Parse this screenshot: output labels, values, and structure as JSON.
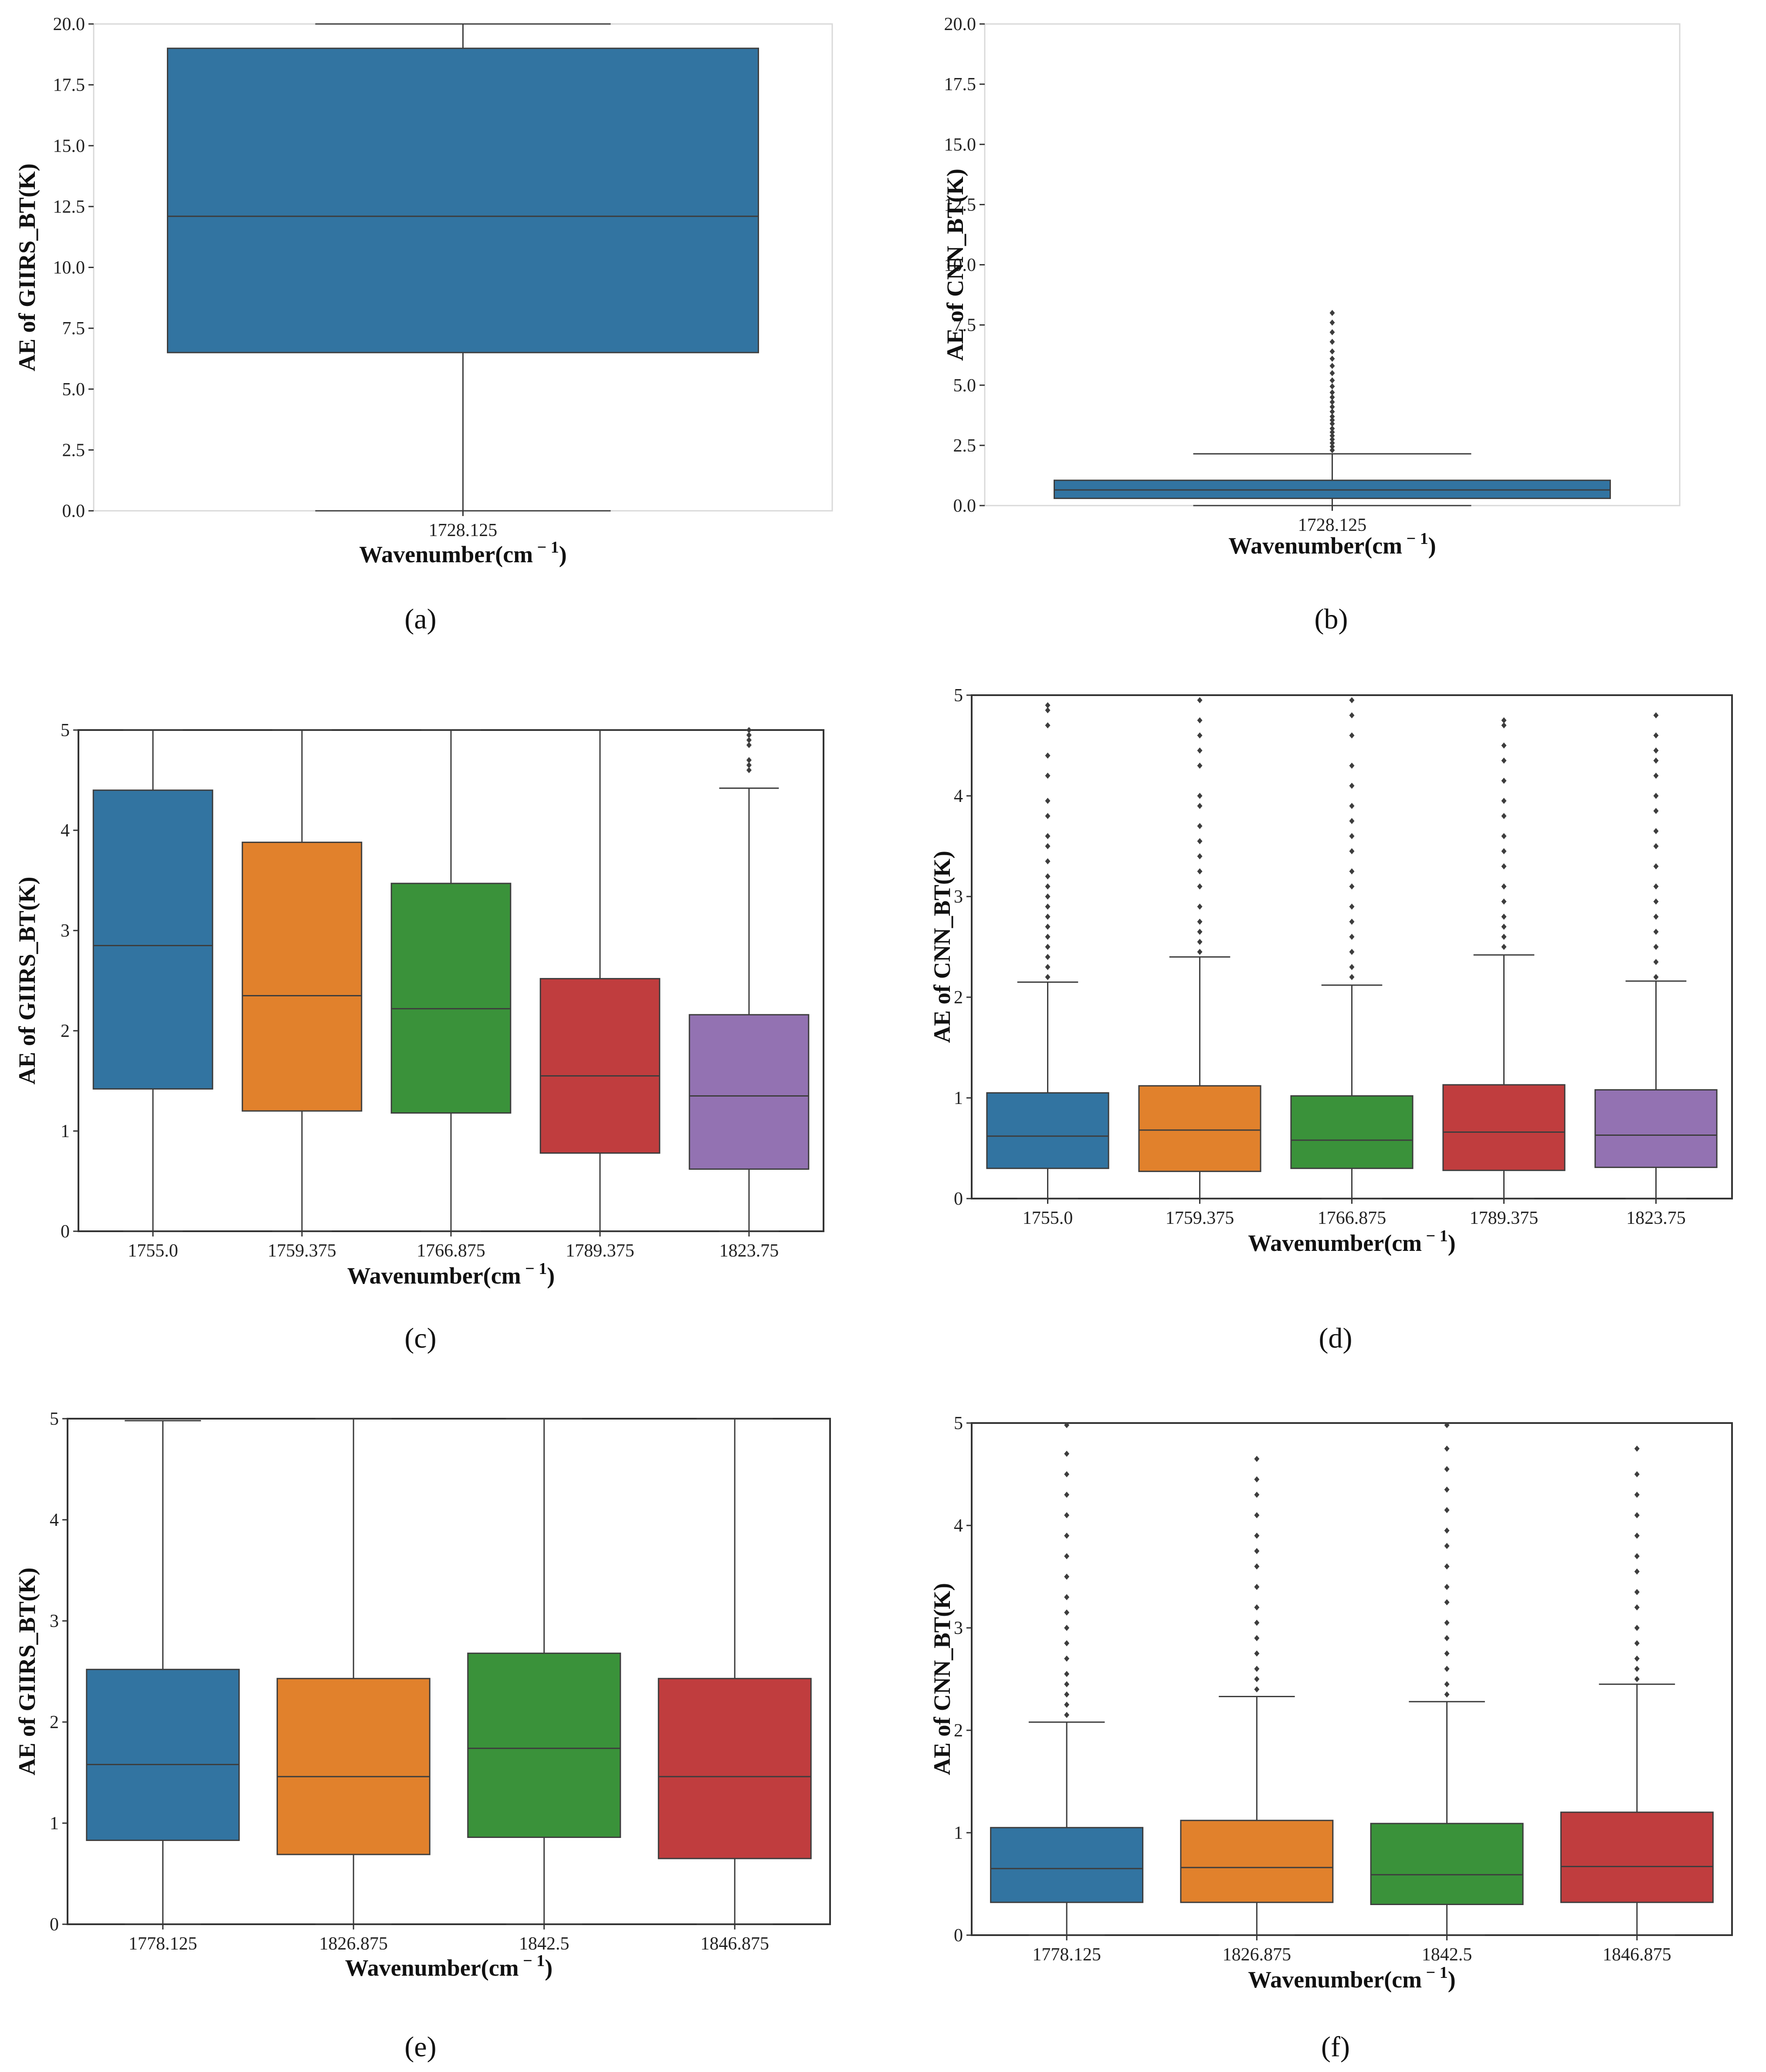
{
  "chart_data": [
    {
      "panel": "a",
      "type": "box",
      "categories": [
        "1728.125"
      ],
      "ylabel": "AE of GIIRS_BT(K)",
      "xlabel": "Wavenumber(cm",
      "xlabel_unit_sup": "− 1",
      "xlabel_close": ")",
      "ylim": [
        0,
        20
      ],
      "yticks": [
        "0.0",
        "2.5",
        "5.0",
        "7.5",
        "10.0",
        "12.5",
        "15.0",
        "17.5",
        "20.0"
      ],
      "boxes": [
        {
          "category": "1728.125",
          "whisker_low": 0.0,
          "q1": 6.5,
          "median": 12.1,
          "q3": 19.0,
          "whisker_high": 20.0,
          "color": "#3274A1",
          "outliers": []
        }
      ],
      "label": "(a)",
      "frame": "light"
    },
    {
      "panel": "b",
      "type": "box",
      "categories": [
        "1728.125"
      ],
      "ylabel": "AE of CNN_BT(K)",
      "xlabel": "Wavenumber(cm",
      "xlabel_unit_sup": "− 1",
      "xlabel_close": ")",
      "ylim": [
        0,
        20
      ],
      "yticks": [
        "0.0",
        "2.5",
        "5.0",
        "7.5",
        "10.0",
        "12.5",
        "15.0",
        "17.5",
        "20.0"
      ],
      "boxes": [
        {
          "category": "1728.125",
          "whisker_low": 0.0,
          "q1": 0.3,
          "median": 0.65,
          "q3": 1.05,
          "whisker_high": 2.15,
          "color": "#3274A1",
          "outliers": [
            2.3,
            2.45,
            2.6,
            2.75,
            2.9,
            3.05,
            3.2,
            3.4,
            3.55,
            3.7,
            3.9,
            4.1,
            4.3,
            4.5,
            4.7,
            4.95,
            5.2,
            5.5,
            5.8,
            6.1,
            6.4,
            6.8,
            7.2,
            7.6,
            8.0
          ]
        }
      ],
      "label": "(b)",
      "frame": "light"
    },
    {
      "panel": "c",
      "type": "box",
      "categories": [
        "1755.0",
        "1759.375",
        "1766.875",
        "1789.375",
        "1823.75"
      ],
      "ylabel": "AE of GIIRS_BT(K)",
      "xlabel": "Wavenumber(cm",
      "xlabel_unit_sup": "− 1",
      "xlabel_close": ")",
      "ylim": [
        0,
        5
      ],
      "yticks": [
        "0",
        "1",
        "2",
        "3",
        "4",
        "5"
      ],
      "boxes": [
        {
          "category": "1755.0",
          "whisker_low": 0,
          "q1": 1.42,
          "median": 2.85,
          "q3": 4.4,
          "whisker_high": 5.0,
          "color": "#3274A1",
          "outliers": []
        },
        {
          "category": "1759.375",
          "whisker_low": 0,
          "q1": 1.2,
          "median": 2.35,
          "q3": 3.88,
          "whisker_high": 5.0,
          "color": "#E1812C",
          "outliers": []
        },
        {
          "category": "1766.875",
          "whisker_low": 0,
          "q1": 1.18,
          "median": 2.22,
          "q3": 3.47,
          "whisker_high": 5.0,
          "color": "#3A923A",
          "outliers": []
        },
        {
          "category": "1789.375",
          "whisker_low": 0,
          "q1": 0.78,
          "median": 1.55,
          "q3": 2.52,
          "whisker_high": 5.0,
          "color": "#C03D3E",
          "outliers": []
        },
        {
          "category": "1823.75",
          "whisker_low": 0,
          "q1": 0.62,
          "median": 1.35,
          "q3": 2.16,
          "whisker_high": 4.42,
          "color": "#9372B2",
          "outliers": [
            4.6,
            4.65,
            4.7,
            4.85,
            4.9,
            4.95,
            5.0
          ]
        }
      ],
      "label": "(c)",
      "frame": "full"
    },
    {
      "panel": "d",
      "type": "box",
      "categories": [
        "1755.0",
        "1759.375",
        "1766.875",
        "1789.375",
        "1823.75"
      ],
      "ylabel": "AE of CNN_BT(K)",
      "xlabel": "Wavenumber(cm",
      "xlabel_unit_sup": "− 1",
      "xlabel_close": ")",
      "ylim": [
        0,
        5
      ],
      "yticks": [
        "0",
        "1",
        "2",
        "3",
        "4",
        "5"
      ],
      "boxes": [
        {
          "category": "1755.0",
          "whisker_low": 0,
          "q1": 0.3,
          "median": 0.62,
          "q3": 1.05,
          "whisker_high": 2.15,
          "color": "#3274A1",
          "outliers": [
            2.2,
            2.3,
            2.4,
            2.5,
            2.6,
            2.7,
            2.8,
            2.9,
            3.0,
            3.1,
            3.2,
            3.35,
            3.5,
            3.6,
            3.8,
            3.95,
            4.2,
            4.4,
            4.7,
            4.85,
            4.9
          ]
        },
        {
          "category": "1759.375",
          "whisker_low": 0,
          "q1": 0.27,
          "median": 0.68,
          "q3": 1.12,
          "whisker_high": 2.4,
          "color": "#E1812C",
          "outliers": [
            2.45,
            2.55,
            2.65,
            2.75,
            2.9,
            3.1,
            3.25,
            3.4,
            3.55,
            3.7,
            3.9,
            4.0,
            4.3,
            4.45,
            4.6,
            4.75,
            4.95
          ]
        },
        {
          "category": "1766.875",
          "whisker_low": 0,
          "q1": 0.3,
          "median": 0.58,
          "q3": 1.02,
          "whisker_high": 2.12,
          "color": "#3A923A",
          "outliers": [
            2.2,
            2.3,
            2.45,
            2.6,
            2.75,
            2.9,
            3.1,
            3.25,
            3.45,
            3.6,
            3.75,
            3.9,
            4.1,
            4.3,
            4.6,
            4.8,
            4.95
          ]
        },
        {
          "category": "1789.375",
          "whisker_low": 0,
          "q1": 0.28,
          "median": 0.66,
          "q3": 1.13,
          "whisker_high": 2.42,
          "color": "#C03D3E",
          "outliers": [
            2.5,
            2.6,
            2.7,
            2.8,
            2.95,
            3.1,
            3.3,
            3.45,
            3.6,
            3.8,
            3.95,
            4.15,
            4.35,
            4.5,
            4.7,
            4.75
          ]
        },
        {
          "category": "1823.75",
          "whisker_low": 0,
          "q1": 0.31,
          "median": 0.63,
          "q3": 1.08,
          "whisker_high": 2.16,
          "color": "#9372B2",
          "outliers": [
            2.2,
            2.35,
            2.5,
            2.65,
            2.8,
            2.95,
            3.1,
            3.3,
            3.5,
            3.65,
            3.85,
            4.0,
            4.2,
            4.35,
            4.45,
            4.6,
            4.8
          ]
        }
      ],
      "label": "(d)",
      "frame": "full"
    },
    {
      "panel": "e",
      "type": "box",
      "categories": [
        "1778.125",
        "1826.875",
        "1842.5",
        "1846.875"
      ],
      "ylabel": "AE of GIIRS_BT(K)",
      "xlabel": "Wavenumber(cm",
      "xlabel_unit_sup": "− 1",
      "xlabel_close": ")",
      "ylim": [
        0,
        5
      ],
      "yticks": [
        "0",
        "1",
        "2",
        "3",
        "4",
        "5"
      ],
      "boxes": [
        {
          "category": "1778.125",
          "whisker_low": 0,
          "q1": 0.83,
          "median": 1.58,
          "q3": 2.52,
          "whisker_high": 4.98,
          "color": "#3274A1",
          "outliers": []
        },
        {
          "category": "1826.875",
          "whisker_low": 0,
          "q1": 0.69,
          "median": 1.46,
          "q3": 2.43,
          "whisker_high": 5.0,
          "color": "#E1812C",
          "outliers": []
        },
        {
          "category": "1842.5",
          "whisker_low": 0,
          "q1": 0.86,
          "median": 1.74,
          "q3": 2.68,
          "whisker_high": 5.0,
          "color": "#3A923A",
          "outliers": []
        },
        {
          "category": "1846.875",
          "whisker_low": 0,
          "q1": 0.65,
          "median": 1.46,
          "q3": 2.43,
          "whisker_high": 5.0,
          "color": "#C03D3E",
          "outliers": []
        }
      ],
      "label": "(e)",
      "frame": "full"
    },
    {
      "panel": "f",
      "type": "box",
      "categories": [
        "1778.125",
        "1826.875",
        "1842.5",
        "1846.875"
      ],
      "ylabel": "AE of CNN_BT(K)",
      "xlabel": "Wavenumber(cm",
      "xlabel_unit_sup": "− 1",
      "xlabel_close": ")",
      "ylim": [
        0,
        5
      ],
      "yticks": [
        "0",
        "1",
        "2",
        "3",
        "4",
        "5"
      ],
      "boxes": [
        {
          "category": "1778.125",
          "whisker_low": 0,
          "q1": 0.32,
          "median": 0.65,
          "q3": 1.05,
          "whisker_high": 2.08,
          "color": "#3274A1",
          "outliers": [
            2.15,
            2.25,
            2.35,
            2.45,
            2.55,
            2.7,
            2.85,
            3.0,
            3.15,
            3.3,
            3.5,
            3.7,
            3.9,
            4.1,
            4.3,
            4.5,
            4.7,
            4.98
          ]
        },
        {
          "category": "1826.875",
          "whisker_low": 0,
          "q1": 0.32,
          "median": 0.66,
          "q3": 1.12,
          "whisker_high": 2.33,
          "color": "#E1812C",
          "outliers": [
            2.4,
            2.5,
            2.6,
            2.75,
            2.9,
            3.05,
            3.2,
            3.4,
            3.6,
            3.75,
            3.9,
            4.1,
            4.3,
            4.45,
            4.65
          ]
        },
        {
          "category": "1842.5",
          "whisker_low": 0,
          "q1": 0.3,
          "median": 0.59,
          "q3": 1.09,
          "whisker_high": 2.28,
          "color": "#3A923A",
          "outliers": [
            2.35,
            2.45,
            2.6,
            2.75,
            2.9,
            3.05,
            3.25,
            3.4,
            3.6,
            3.8,
            3.95,
            4.15,
            4.35,
            4.55,
            4.75,
            4.98
          ]
        },
        {
          "category": "1846.875",
          "whisker_low": 0,
          "q1": 0.32,
          "median": 0.67,
          "q3": 1.2,
          "whisker_high": 2.45,
          "color": "#C03D3E",
          "outliers": [
            2.5,
            2.6,
            2.7,
            2.85,
            3.0,
            3.2,
            3.35,
            3.55,
            3.7,
            3.9,
            4.1,
            4.3,
            4.5,
            4.75
          ]
        }
      ],
      "label": "(f)",
      "frame": "full"
    }
  ]
}
